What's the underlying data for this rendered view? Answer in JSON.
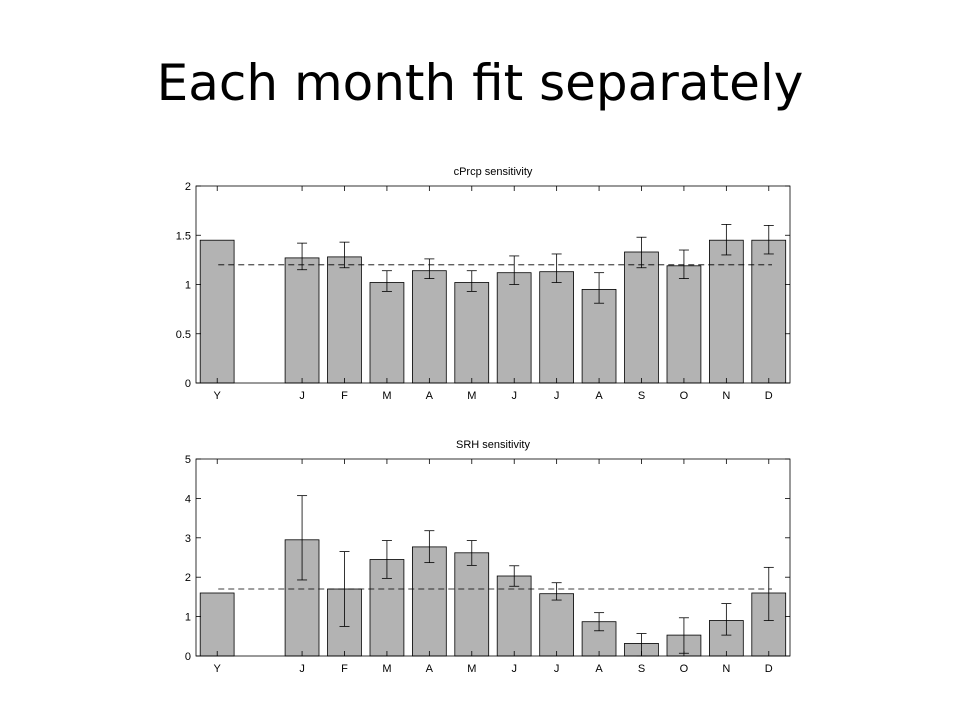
{
  "slide": {
    "title": "Each month fit separately"
  },
  "colors": {
    "bar_fill": "#b3b3b3",
    "bar_stroke": "#000000",
    "axis": "#000000",
    "reference_line": "#000000"
  },
  "chart_data": [
    {
      "type": "bar",
      "title": "cPrcp sensitivity",
      "xlabel": "",
      "ylabel": "",
      "categories": [
        "Y",
        "",
        "J",
        "F",
        "M",
        "A",
        "M",
        "J",
        "J",
        "A",
        "S",
        "O",
        "N",
        "D"
      ],
      "values": [
        1.45,
        null,
        1.27,
        1.28,
        1.02,
        1.14,
        1.02,
        1.12,
        1.13,
        0.95,
        1.33,
        1.19,
        1.45,
        1.45
      ],
      "error_low": [
        null,
        null,
        1.15,
        1.17,
        0.93,
        1.06,
        0.93,
        1.0,
        1.02,
        0.81,
        1.17,
        1.06,
        1.3,
        1.31
      ],
      "error_high": [
        null,
        null,
        1.42,
        1.43,
        1.14,
        1.26,
        1.14,
        1.29,
        1.31,
        1.12,
        1.48,
        1.35,
        1.61,
        1.6
      ],
      "reference_line": {
        "y": 1.2,
        "style": "dashed"
      },
      "ylim": [
        0,
        2
      ],
      "yticks": [
        "0",
        "0.5",
        "1",
        "1.5",
        "2"
      ],
      "ytick_values": [
        0,
        0.5,
        1,
        1.5,
        2
      ],
      "grid": false,
      "legend": "none"
    },
    {
      "type": "bar",
      "title": "SRH sensitivity",
      "xlabel": "",
      "ylabel": "",
      "categories": [
        "Y",
        "",
        "J",
        "F",
        "M",
        "A",
        "M",
        "J",
        "J",
        "A",
        "S",
        "O",
        "N",
        "D"
      ],
      "values": [
        1.6,
        null,
        2.95,
        1.7,
        2.45,
        2.77,
        2.62,
        2.03,
        1.58,
        0.87,
        0.32,
        0.53,
        0.9,
        1.6
      ],
      "error_low": [
        null,
        null,
        1.93,
        0.75,
        1.97,
        2.37,
        2.3,
        1.77,
        1.42,
        0.64,
        0.0,
        0.07,
        0.53,
        0.9
      ],
      "error_high": [
        null,
        null,
        4.07,
        2.65,
        2.93,
        3.18,
        2.93,
        2.29,
        1.86,
        1.1,
        0.57,
        0.97,
        1.33,
        2.25
      ],
      "reference_line": {
        "y": 1.7,
        "style": "dashed"
      },
      "ylim": [
        0,
        5
      ],
      "yticks": [
        "0",
        "1",
        "2",
        "3",
        "4",
        "5"
      ],
      "ytick_values": [
        0,
        1,
        2,
        3,
        4,
        5
      ],
      "grid": false,
      "legend": "none"
    }
  ]
}
